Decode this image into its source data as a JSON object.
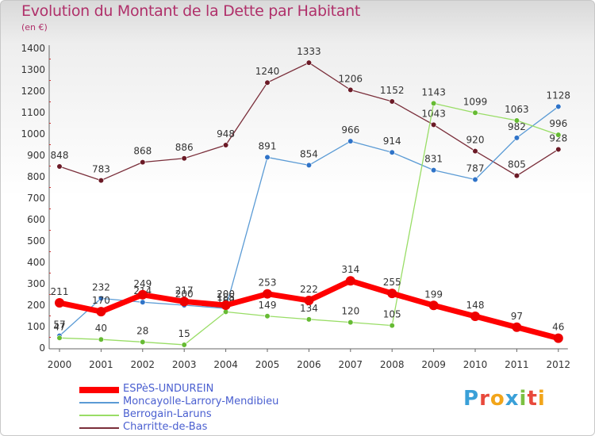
{
  "header": {
    "title": "Evolution du Montant de la Dette par Habitant",
    "unit": "(en €)"
  },
  "logo": {
    "text": "Proxiti"
  },
  "chart_data": {
    "type": "line",
    "x": [
      "2000",
      "2001",
      "2002",
      "2003",
      "2004",
      "2005",
      "2006",
      "2007",
      "2008",
      "2009",
      "2010",
      "2011",
      "2012"
    ],
    "ylim": [
      0,
      1400
    ],
    "yticks": [
      0,
      100,
      200,
      300,
      400,
      500,
      600,
      700,
      800,
      900,
      1000,
      1100,
      1200,
      1300,
      1400
    ],
    "grid": false,
    "legend_position": "bottom-left",
    "series": [
      {
        "name": "Charritte-de-Bas",
        "color": "#7a2e3a",
        "point_color": "#6b1a26",
        "values": [
          848,
          783,
          868,
          886,
          948,
          1240,
          1333,
          1206,
          1152,
          1043,
          920,
          805,
          928
        ]
      },
      {
        "name": "Moncayolle-Larrory-Mendibieu",
        "color": "#5b9bd5",
        "point_color": "#2f73c8",
        "values": [
          57,
          232,
          214,
          200,
          185,
          891,
          854,
          966,
          914,
          831,
          787,
          982,
          1128
        ]
      },
      {
        "name": "Berrogain-Laruns",
        "color": "#99dd66",
        "point_color": "#66bb33",
        "values": [
          47,
          40,
          28,
          15,
          169,
          149,
          134,
          120,
          105,
          1143,
          1099,
          1063,
          996
        ]
      },
      {
        "name": "ESPèS-UNDUREIN",
        "color": "#ff0000",
        "point_color": "#ee0000",
        "values": [
          211,
          170,
          249,
          217,
          200,
          253,
          222,
          314,
          255,
          199,
          148,
          97,
          46
        ]
      }
    ],
    "legend_order": [
      "ESPèS-UNDUREIN",
      "Moncayolle-Larrory-Mendibieu",
      "Berrogain-Laruns",
      "Charritte-de-Bas"
    ]
  }
}
